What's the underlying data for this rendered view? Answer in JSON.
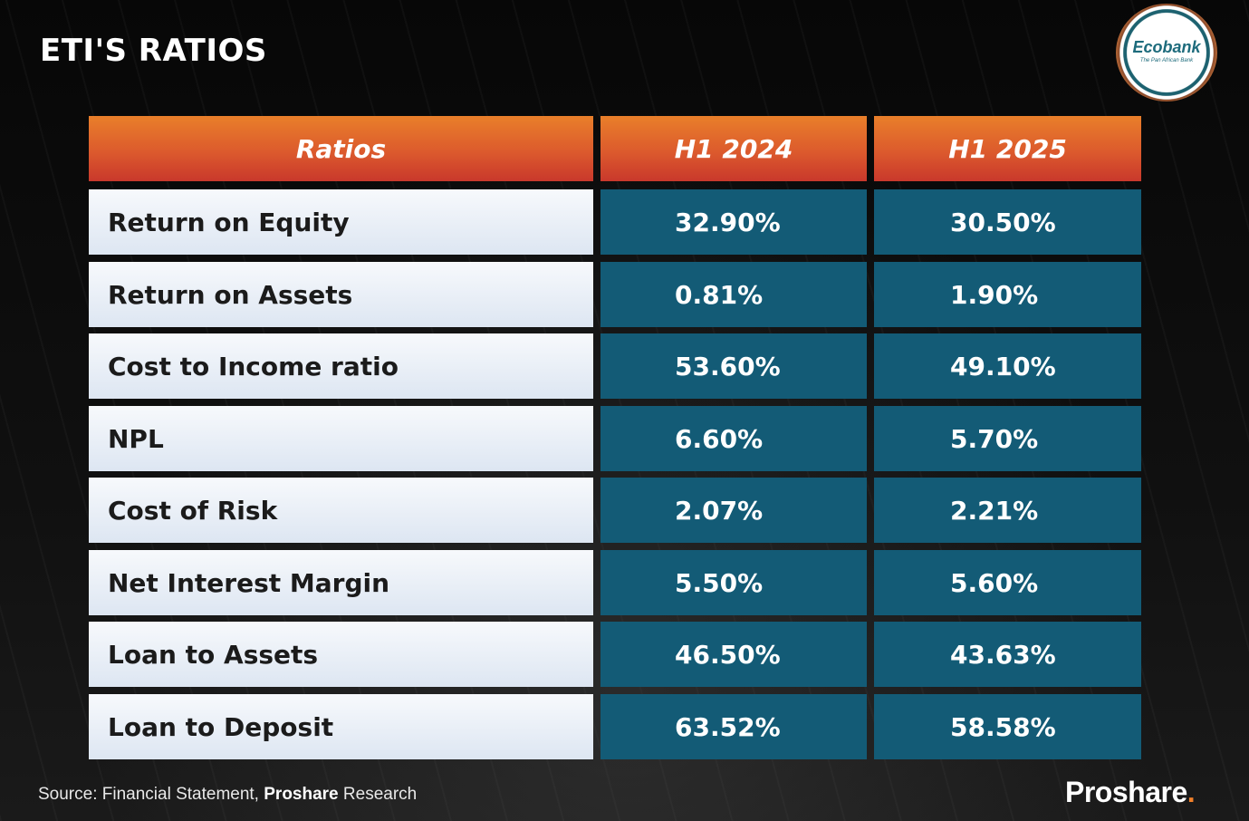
{
  "title": "ETI'S RATIOS",
  "logo": {
    "name": "Ecobank",
    "tagline": "The Pan African Bank"
  },
  "table": {
    "headers": [
      "Ratios",
      "H1 2024",
      "H1 2025"
    ],
    "rows": [
      [
        "Return on Equity",
        "32.90%",
        "30.50%"
      ],
      [
        "Return on Assets",
        "0.81%",
        "1.90%"
      ],
      [
        "Cost to Income ratio",
        "53.60%",
        "49.10%"
      ],
      [
        "NPL",
        "6.60%",
        "5.70%"
      ],
      [
        "Cost of Risk",
        "2.07%",
        "2.21%"
      ],
      [
        "Net Interest Margin",
        "5.50%",
        "5.60%"
      ],
      [
        "Loan to Assets",
        "46.50%",
        "43.63%"
      ],
      [
        "Loan to Deposit",
        "63.52%",
        "58.58%"
      ]
    ]
  },
  "footer": {
    "source_prefix": "Source: Financial Statement, ",
    "source_brand": "Proshare",
    "source_suffix": " Research",
    "brand": "Proshare",
    "brand_dot": "."
  },
  "colors": {
    "header_gradient_top": "#e97f2a",
    "header_gradient_bottom": "#c9382c",
    "value_cell": "#135b76",
    "label_cell": "#dde6f2",
    "brand_dot": "#f0802a"
  },
  "chart_data": {
    "type": "table",
    "title": "ETI'S RATIOS",
    "columns": [
      "Ratios",
      "H1 2024",
      "H1 2025"
    ],
    "rows": [
      [
        "Return on Equity",
        "32.90%",
        "30.50%"
      ],
      [
        "Return on Assets",
        "0.81%",
        "1.90%"
      ],
      [
        "Cost to Income ratio",
        "53.60%",
        "49.10%"
      ],
      [
        "NPL",
        "6.60%",
        "5.70%"
      ],
      [
        "Cost of Risk",
        "2.07%",
        "2.21%"
      ],
      [
        "Net Interest Margin",
        "5.50%",
        "5.60%"
      ],
      [
        "Loan to Assets",
        "46.50%",
        "43.63%"
      ],
      [
        "Loan to Deposit",
        "63.52%",
        "58.58%"
      ]
    ]
  }
}
